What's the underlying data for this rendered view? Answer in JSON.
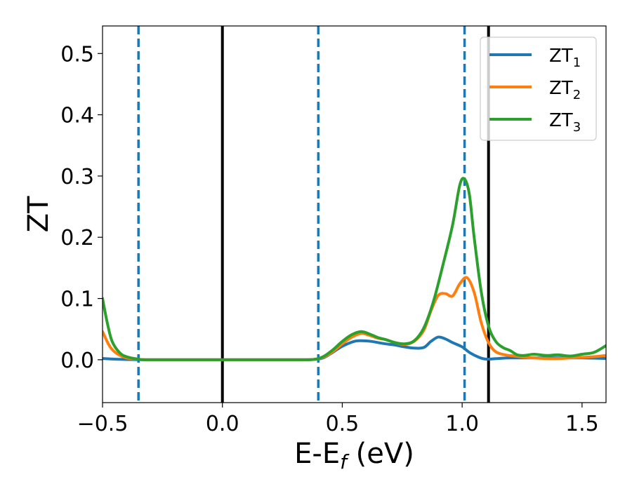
{
  "chart_data": {
    "type": "line",
    "xlabel": {
      "main": "E-E",
      "sub": "f",
      "suffix": " (eV)"
    },
    "ylabel": "ZT",
    "xlim": [
      -0.5,
      1.6
    ],
    "ylim": [
      -0.07,
      0.545
    ],
    "x_ticks": [
      {
        "value": -0.5,
        "label": "−0.5"
      },
      {
        "value": 0.0,
        "label": "0.0"
      },
      {
        "value": 0.5,
        "label": "0.5"
      },
      {
        "value": 1.0,
        "label": "1.0"
      },
      {
        "value": 1.5,
        "label": "1.5"
      }
    ],
    "y_ticks": [
      {
        "value": 0.0,
        "label": "0.0"
      },
      {
        "value": 0.1,
        "label": "0.1"
      },
      {
        "value": 0.2,
        "label": "0.2"
      },
      {
        "value": 0.3,
        "label": "0.3"
      },
      {
        "value": 0.4,
        "label": "0.4"
      },
      {
        "value": 0.5,
        "label": "0.5"
      }
    ],
    "grid": false,
    "legend_position": "top-right",
    "vertical_lines": [
      {
        "x": -0.35,
        "style": "dashed",
        "color": "#1f77b4"
      },
      {
        "x": 0.0,
        "style": "solid",
        "color": "#000000"
      },
      {
        "x": 0.4,
        "style": "dashed",
        "color": "#1f77b4"
      },
      {
        "x": 1.01,
        "style": "dashed",
        "color": "#1f77b4"
      },
      {
        "x": 1.11,
        "style": "solid",
        "color": "#000000"
      }
    ],
    "series": [
      {
        "name": "ZT",
        "sub": "1",
        "color": "#1f77b4",
        "x": [
          -0.5,
          -0.45,
          -0.4,
          -0.35,
          -0.3,
          0.0,
          0.3,
          0.38,
          0.42,
          0.46,
          0.5,
          0.55,
          0.58,
          0.62,
          0.65,
          0.68,
          0.72,
          0.76,
          0.8,
          0.84,
          0.87,
          0.9,
          0.93,
          0.96,
          1.0,
          1.03,
          1.07,
          1.1,
          1.15,
          1.2,
          1.3,
          1.4,
          1.5,
          1.6
        ],
        "y": [
          0.002,
          0.001,
          0.0005,
          0.0002,
          0.0,
          0.0,
          0.0,
          0.0005,
          0.003,
          0.012,
          0.022,
          0.03,
          0.031,
          0.03,
          0.028,
          0.026,
          0.024,
          0.021,
          0.019,
          0.02,
          0.03,
          0.037,
          0.034,
          0.028,
          0.021,
          0.012,
          0.004,
          0.001,
          0.002,
          0.003,
          0.003,
          0.003,
          0.003,
          0.002
        ]
      },
      {
        "name": "ZT",
        "sub": "2",
        "color": "#ff7f0e",
        "x": [
          -0.5,
          -0.47,
          -0.44,
          -0.4,
          -0.35,
          -0.3,
          0.0,
          0.3,
          0.38,
          0.42,
          0.46,
          0.5,
          0.54,
          0.58,
          0.62,
          0.65,
          0.68,
          0.72,
          0.76,
          0.8,
          0.84,
          0.87,
          0.9,
          0.93,
          0.96,
          0.99,
          1.02,
          1.05,
          1.08,
          1.11,
          1.14,
          1.18,
          1.22,
          1.26,
          1.3,
          1.35,
          1.4,
          1.45,
          1.5,
          1.55,
          1.6
        ],
        "y": [
          0.046,
          0.022,
          0.01,
          0.003,
          0.001,
          0.0,
          0.0,
          0.0,
          0.0005,
          0.004,
          0.013,
          0.026,
          0.037,
          0.043,
          0.039,
          0.035,
          0.033,
          0.028,
          0.025,
          0.03,
          0.048,
          0.08,
          0.105,
          0.108,
          0.104,
          0.124,
          0.134,
          0.11,
          0.06,
          0.028,
          0.013,
          0.008,
          0.006,
          0.004,
          0.003,
          0.002,
          0.002,
          0.003,
          0.004,
          0.005,
          0.007
        ]
      },
      {
        "name": "ZT",
        "sub": "3",
        "color": "#2ca02c",
        "x": [
          -0.5,
          -0.48,
          -0.46,
          -0.43,
          -0.4,
          -0.35,
          -0.3,
          0.0,
          0.3,
          0.38,
          0.42,
          0.46,
          0.5,
          0.54,
          0.58,
          0.62,
          0.65,
          0.68,
          0.72,
          0.76,
          0.8,
          0.84,
          0.88,
          0.92,
          0.96,
          0.99,
          1.01,
          1.03,
          1.05,
          1.08,
          1.11,
          1.14,
          1.17,
          1.2,
          1.23,
          1.26,
          1.3,
          1.35,
          1.4,
          1.45,
          1.5,
          1.55,
          1.6
        ],
        "y": [
          0.1,
          0.06,
          0.03,
          0.012,
          0.005,
          0.001,
          0.0,
          0.0,
          0.0,
          0.0005,
          0.005,
          0.016,
          0.03,
          0.041,
          0.046,
          0.041,
          0.036,
          0.033,
          0.028,
          0.026,
          0.031,
          0.052,
          0.095,
          0.155,
          0.22,
          0.285,
          0.295,
          0.27,
          0.2,
          0.11,
          0.055,
          0.03,
          0.02,
          0.015,
          0.008,
          0.007,
          0.009,
          0.007,
          0.008,
          0.006,
          0.009,
          0.012,
          0.023
        ]
      }
    ]
  }
}
